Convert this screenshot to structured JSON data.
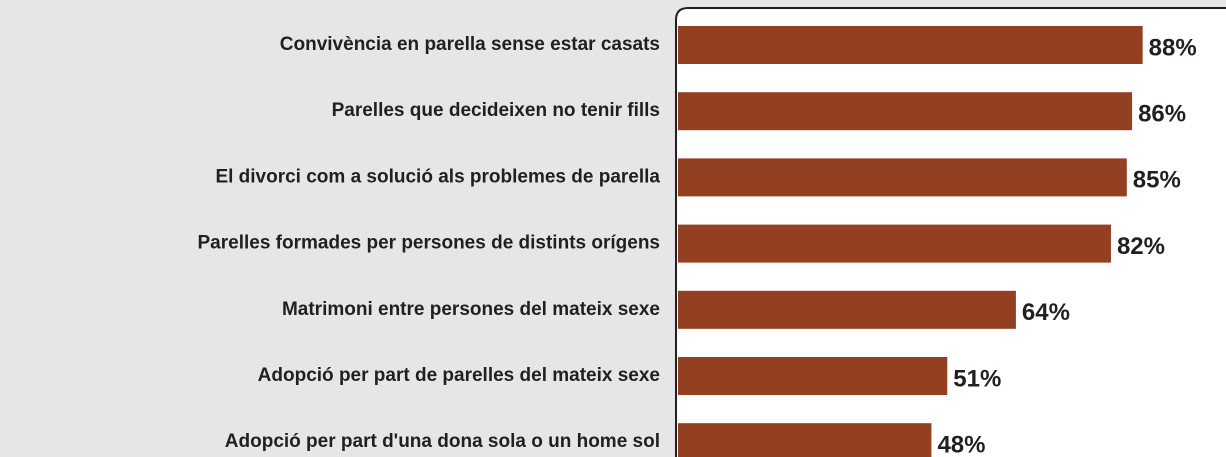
{
  "chart_data": {
    "type": "bar",
    "orientation": "horizontal",
    "categories": [
      "Convivència en parella sense estar casats",
      "Parelles que decideixen no tenir fills",
      "El divorci com a solució als problemes de parella",
      "Parelles formades per persones de distints orígens",
      "Matrimoni entre persones del mateix sexe",
      "Adopció per part de parelles del mateix sexe",
      "Adopció per part d'una dona sola o un home sol"
    ],
    "values": [
      88,
      86,
      85,
      82,
      64,
      51,
      48
    ],
    "value_labels": [
      "88%",
      "86%",
      "85%",
      "82%",
      "64%",
      "51%",
      "48%"
    ],
    "color": "#933f22",
    "xlim": [
      0,
      100
    ]
  }
}
